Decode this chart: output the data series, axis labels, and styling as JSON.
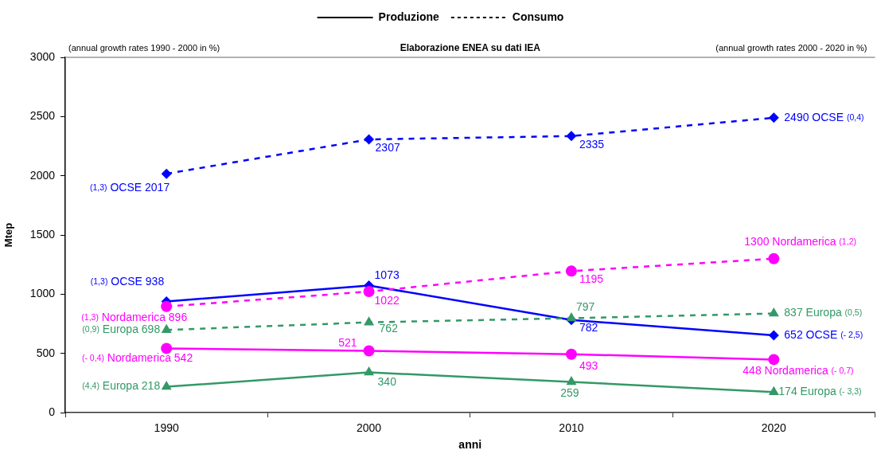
{
  "chart_data": {
    "type": "line",
    "annotations": [
      "(annual growth rates 1990 - 2000 in %)",
      "Elaborazione ENEA su dati IEA",
      "(annual growth rates 2000 - 2020 in %)"
    ],
    "xlabel": "anni",
    "ylabel": "Mtep",
    "categories": [
      "1990",
      "2000",
      "2010",
      "2020"
    ],
    "ylim": [
      0,
      3000
    ],
    "yticks": [
      0,
      500,
      1000,
      1500,
      2000,
      2500,
      3000
    ],
    "legend": "top",
    "series": [
      {
        "name": "Produzione",
        "color": "#000000",
        "line_style": "solid",
        "marker": "none",
        "values": [
          null,
          null,
          null,
          null
        ]
      },
      {
        "name": "Consumo",
        "color": "#000000",
        "line_style": "dashed",
        "marker": "none",
        "values": [
          null,
          null,
          null,
          null
        ]
      },
      {
        "color": "#0000ff",
        "line_style": "dashed",
        "marker": "diamond",
        "values": [
          2017,
          2307,
          2335,
          2490
        ],
        "value_labels": [
          "(1,3) OCSE 2017",
          "2307",
          "2335",
          "2490 OCSE (0,4)"
        ]
      },
      {
        "color": "#ff00ff",
        "line_style": "dashed",
        "marker": "circle",
        "values": [
          896,
          1022,
          1195,
          1300
        ],
        "value_labels": [
          "(1,3) Nordamerica 896",
          "1022",
          "1195",
          "1300 Nordamerica (1,2)"
        ]
      },
      {
        "color": "#339966",
        "line_style": "dashed",
        "marker": "triangle",
        "values": [
          698,
          762,
          797,
          837
        ],
        "value_labels": [
          "(0,9) Europa 698",
          "762",
          "797",
          "837 Europa (0,5)"
        ]
      },
      {
        "color": "#0000ff",
        "line_style": "solid",
        "marker": "diamond",
        "values": [
          938,
          1073,
          782,
          652
        ],
        "value_labels": [
          "(1,3) OCSE 938",
          "1073",
          "782",
          "652 OCSE (- 2,5)"
        ]
      },
      {
        "color": "#ff00ff",
        "line_style": "solid",
        "marker": "circle",
        "values": [
          542,
          521,
          493,
          448
        ],
        "value_labels": [
          "(- 0,4) Nordamerica 542",
          "521",
          "493",
          "448 Nordamerica (- 0,7)"
        ]
      },
      {
        "color": "#339966",
        "line_style": "solid",
        "marker": "triangle",
        "values": [
          218,
          340,
          259,
          174
        ],
        "value_labels": [
          "(4,4) Europa 218",
          "340",
          "259",
          "174 Europa (- 3,3)"
        ]
      }
    ]
  }
}
